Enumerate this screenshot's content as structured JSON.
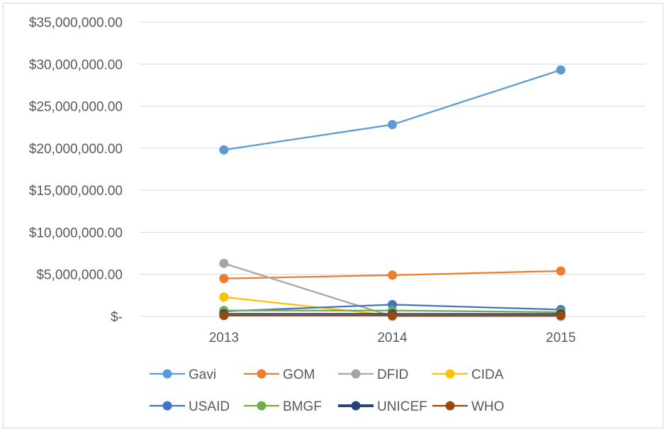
{
  "chart_data": {
    "type": "line",
    "title": "",
    "xlabel": "",
    "ylabel": "",
    "categories": [
      "2013",
      "2014",
      "2015"
    ],
    "ylim": [
      0,
      35000000
    ],
    "y_tick_values": [
      0,
      5000000,
      10000000,
      15000000,
      20000000,
      25000000,
      30000000,
      35000000
    ],
    "y_tick_labels": [
      "$-",
      "$5,000,000.00",
      "$10,000,000.00",
      "$15,000,000.00",
      "$20,000,000.00",
      "$25,000,000.00",
      "$30,000,000.00",
      "$35,000,000.00"
    ],
    "grid": true,
    "legend_position": "bottom",
    "series": [
      {
        "name": "Gavi",
        "color": "#5b9bd5",
        "values": [
          19800000,
          22800000,
          29300000
        ]
      },
      {
        "name": "GOM",
        "color": "#ed7d31",
        "values": [
          4500000,
          4900000,
          5400000
        ]
      },
      {
        "name": "DFID",
        "color": "#a5a5a5",
        "values": [
          6300000,
          0,
          0
        ]
      },
      {
        "name": "CIDA",
        "color": "#ffc000",
        "values": [
          2300000,
          100000,
          100000
        ]
      },
      {
        "name": "USAID",
        "color": "#4472c4",
        "values": [
          600000,
          1400000,
          800000
        ]
      },
      {
        "name": "BMGF",
        "color": "#70ad47",
        "values": [
          700000,
          700000,
          500000
        ]
      },
      {
        "name": "UNICEF",
        "color": "#264478",
        "values": [
          300000,
          300000,
          300000
        ]
      },
      {
        "name": "WHO",
        "color": "#9e480e",
        "values": [
          100000,
          100000,
          100000
        ]
      }
    ]
  }
}
